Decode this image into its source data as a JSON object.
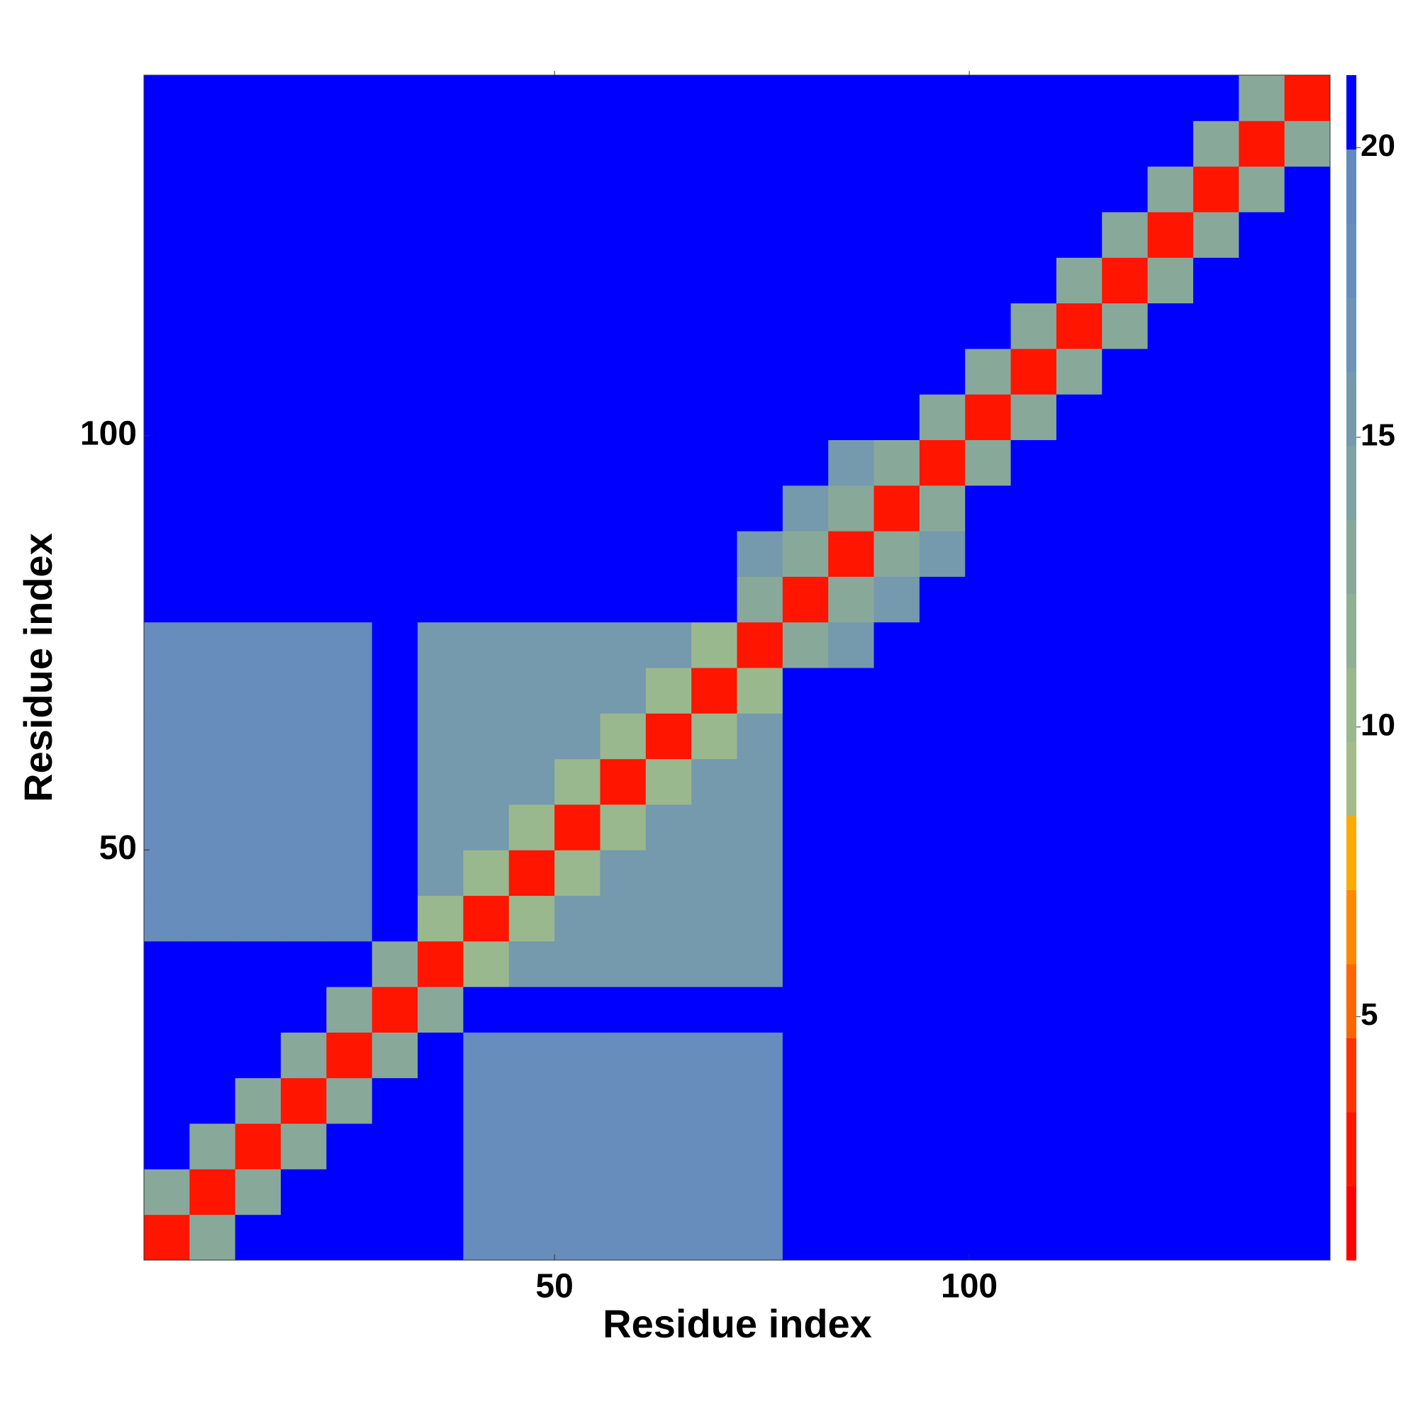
{
  "chart_data": {
    "type": "heatmap",
    "xlabel": "Residue index",
    "ylabel": "Residue index",
    "x": [
      3.25,
      8.75,
      14.25,
      19.75,
      25.25,
      30.75,
      36.25,
      41.75,
      47.25,
      52.75,
      58.25,
      63.75,
      69.25,
      74.75,
      80.25,
      85.75,
      91.25,
      96.75,
      102.25,
      107.75,
      113.25,
      118.75,
      124.25,
      129.75,
      135.25,
      140.75
    ],
    "y": [
      3.25,
      8.75,
      14.25,
      19.75,
      25.25,
      30.75,
      36.25,
      41.75,
      47.25,
      52.75,
      58.25,
      63.75,
      69.25,
      74.75,
      80.25,
      85.75,
      91.25,
      96.75,
      102.25,
      107.75,
      113.25,
      118.75,
      124.25,
      129.75,
      135.25,
      140.75
    ],
    "z": [
      [
        3,
        13,
        21,
        21,
        21,
        21,
        21,
        18,
        18,
        18,
        18,
        18,
        18,
        18,
        21,
        21,
        21,
        21,
        21,
        21,
        21,
        21,
        21,
        21,
        21,
        21
      ],
      [
        13,
        3,
        13,
        21,
        21,
        21,
        21,
        18,
        18,
        18,
        18,
        18,
        18,
        18,
        21,
        21,
        21,
        21,
        21,
        21,
        21,
        21,
        21,
        21,
        21,
        21
      ],
      [
        21,
        13,
        3,
        13,
        21,
        21,
        21,
        18,
        18,
        18,
        18,
        18,
        18,
        18,
        21,
        21,
        21,
        21,
        21,
        21,
        21,
        21,
        21,
        21,
        21,
        21
      ],
      [
        21,
        21,
        13,
        3,
        13,
        21,
        21,
        18,
        18,
        18,
        18,
        18,
        18,
        18,
        21,
        21,
        21,
        21,
        21,
        21,
        21,
        21,
        21,
        21,
        21,
        21
      ],
      [
        21,
        21,
        21,
        13,
        3,
        13,
        21,
        18,
        18,
        18,
        18,
        18,
        18,
        18,
        21,
        21,
        21,
        21,
        21,
        21,
        21,
        21,
        21,
        21,
        21,
        21
      ],
      [
        21,
        21,
        21,
        21,
        13,
        3,
        13,
        21,
        21,
        21,
        21,
        21,
        21,
        21,
        21,
        21,
        21,
        21,
        21,
        21,
        21,
        21,
        21,
        21,
        21,
        21
      ],
      [
        21,
        21,
        21,
        21,
        21,
        13,
        3,
        10,
        16,
        16,
        16,
        16,
        16,
        16,
        21,
        21,
        21,
        21,
        21,
        21,
        21,
        21,
        21,
        21,
        21,
        21
      ],
      [
        18,
        18,
        18,
        18,
        18,
        21,
        10,
        3,
        10,
        16,
        16,
        16,
        16,
        16,
        21,
        21,
        21,
        21,
        21,
        21,
        21,
        21,
        21,
        21,
        21,
        21
      ],
      [
        18,
        18,
        18,
        18,
        18,
        21,
        16,
        10,
        3,
        10,
        16,
        16,
        16,
        16,
        21,
        21,
        21,
        21,
        21,
        21,
        21,
        21,
        21,
        21,
        21,
        21
      ],
      [
        18,
        18,
        18,
        18,
        18,
        21,
        16,
        16,
        10,
        3,
        10,
        16,
        16,
        16,
        21,
        21,
        21,
        21,
        21,
        21,
        21,
        21,
        21,
        21,
        21,
        21
      ],
      [
        18,
        18,
        18,
        18,
        18,
        21,
        16,
        16,
        16,
        10,
        3,
        10,
        16,
        16,
        21,
        21,
        21,
        21,
        21,
        21,
        21,
        21,
        21,
        21,
        21,
        21
      ],
      [
        18,
        18,
        18,
        18,
        18,
        21,
        16,
        16,
        16,
        16,
        10,
        3,
        10,
        16,
        21,
        21,
        21,
        21,
        21,
        21,
        21,
        21,
        21,
        21,
        21,
        21
      ],
      [
        18,
        18,
        18,
        18,
        18,
        21,
        16,
        16,
        16,
        16,
        16,
        10,
        3,
        10,
        21,
        21,
        21,
        21,
        21,
        21,
        21,
        21,
        21,
        21,
        21,
        21
      ],
      [
        18,
        18,
        18,
        18,
        18,
        21,
        16,
        16,
        16,
        16,
        16,
        16,
        10,
        3,
        13,
        15,
        21,
        21,
        21,
        21,
        21,
        21,
        21,
        21,
        21,
        21
      ],
      [
        21,
        21,
        21,
        21,
        21,
        21,
        21,
        21,
        21,
        21,
        21,
        21,
        21,
        13,
        3,
        13,
        15,
        21,
        21,
        21,
        21,
        21,
        21,
        21,
        21,
        21
      ],
      [
        21,
        21,
        21,
        21,
        21,
        21,
        21,
        21,
        21,
        21,
        21,
        21,
        21,
        15,
        13,
        3,
        13,
        15,
        21,
        21,
        21,
        21,
        21,
        21,
        21,
        21
      ],
      [
        21,
        21,
        21,
        21,
        21,
        21,
        21,
        21,
        21,
        21,
        21,
        21,
        21,
        21,
        15,
        13,
        3,
        13,
        21,
        21,
        21,
        21,
        21,
        21,
        21,
        21
      ],
      [
        21,
        21,
        21,
        21,
        21,
        21,
        21,
        21,
        21,
        21,
        21,
        21,
        21,
        21,
        21,
        15,
        13,
        3,
        13,
        21,
        21,
        21,
        21,
        21,
        21,
        21
      ],
      [
        21,
        21,
        21,
        21,
        21,
        21,
        21,
        21,
        21,
        21,
        21,
        21,
        21,
        21,
        21,
        21,
        21,
        13,
        3,
        13,
        21,
        21,
        21,
        21,
        21,
        21
      ],
      [
        21,
        21,
        21,
        21,
        21,
        21,
        21,
        21,
        21,
        21,
        21,
        21,
        21,
        21,
        21,
        21,
        21,
        21,
        13,
        3,
        13,
        21,
        21,
        21,
        21,
        21
      ],
      [
        21,
        21,
        21,
        21,
        21,
        21,
        21,
        21,
        21,
        21,
        21,
        21,
        21,
        21,
        21,
        21,
        21,
        21,
        21,
        13,
        3,
        13,
        21,
        21,
        21,
        21
      ],
      [
        21,
        21,
        21,
        21,
        21,
        21,
        21,
        21,
        21,
        21,
        21,
        21,
        21,
        21,
        21,
        21,
        21,
        21,
        21,
        21,
        13,
        3,
        13,
        21,
        21,
        21
      ],
      [
        21,
        21,
        21,
        21,
        21,
        21,
        21,
        21,
        21,
        21,
        21,
        21,
        21,
        21,
        21,
        21,
        21,
        21,
        21,
        21,
        21,
        13,
        3,
        13,
        21,
        21
      ],
      [
        21,
        21,
        21,
        21,
        21,
        21,
        21,
        21,
        21,
        21,
        21,
        21,
        21,
        21,
        21,
        21,
        21,
        21,
        21,
        21,
        21,
        21,
        13,
        3,
        13,
        21
      ],
      [
        21,
        21,
        21,
        21,
        21,
        21,
        21,
        21,
        21,
        21,
        21,
        21,
        21,
        21,
        21,
        21,
        21,
        21,
        21,
        21,
        21,
        21,
        21,
        13,
        3,
        13
      ],
      [
        21,
        21,
        21,
        21,
        21,
        21,
        21,
        21,
        21,
        21,
        21,
        21,
        21,
        21,
        21,
        21,
        21,
        21,
        21,
        21,
        21,
        21,
        21,
        21,
        13,
        3
      ]
    ],
    "xlim": [
      0.5,
      143.5
    ],
    "ylim": [
      0.5,
      143.5
    ],
    "xticks": [
      50,
      100
    ],
    "yticks": [
      50,
      100
    ],
    "zlim": [
      0.8,
      21.25
    ],
    "zticks": [
      5,
      10,
      15,
      20
    ],
    "colorscale": [
      "#ff0000",
      "#ff1500",
      "#ff3300",
      "#ff6600",
      "#ff8800",
      "#ffaa00",
      "#a3bc8a",
      "#9ab88e",
      "#90b093",
      "#88a99a",
      "#7ea1a4",
      "#7599ad",
      "#6d93b6",
      "#678dbc",
      "#628ac0",
      "#0000ff"
    ]
  }
}
